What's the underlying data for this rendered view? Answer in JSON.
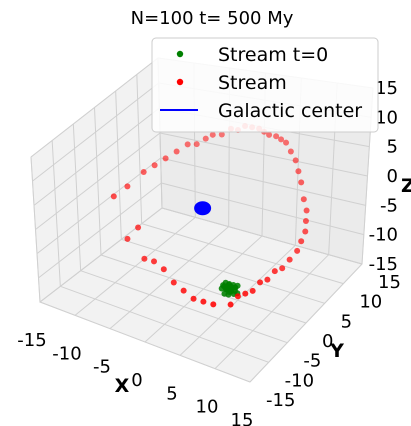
{
  "chart_data": {
    "type": "scatter",
    "projection": "3d",
    "title": "N=100 t= 500 My",
    "xlabel": "X",
    "ylabel": "Y",
    "zlabel": "Z",
    "xlim": [
      -15,
      15
    ],
    "ylim": [
      -15,
      15
    ],
    "zlim": [
      -15,
      15
    ],
    "x_ticks": [
      "-15",
      "-10",
      "-5",
      "0",
      "5",
      "10",
      "15"
    ],
    "y_ticks": [
      "-15",
      "-10",
      "-5",
      "0",
      "5",
      "10",
      "15"
    ],
    "z_ticks": [
      "-15",
      "-10",
      "-5",
      "0",
      "5",
      "10",
      "15"
    ],
    "grid": true,
    "legend_position": "top-right",
    "series": [
      {
        "name": "Stream t=0",
        "marker": "point",
        "color": "#008000",
        "points": [
          [
            8.0,
            -8.0,
            -6.0
          ],
          [
            8.4,
            -8.3,
            -6.2
          ],
          [
            8.8,
            -8.6,
            -5.8
          ],
          [
            9.1,
            -7.9,
            -6.4
          ],
          [
            7.7,
            -8.4,
            -5.6
          ],
          [
            8.2,
            -7.6,
            -6.6
          ],
          [
            8.9,
            -8.9,
            -6.0
          ],
          [
            9.3,
            -8.2,
            -5.5
          ],
          [
            7.5,
            -7.8,
            -6.3
          ],
          [
            8.6,
            -7.4,
            -5.9
          ],
          [
            8.1,
            -8.8,
            -6.7
          ],
          [
            9.0,
            -7.6,
            -6.1
          ],
          [
            7.9,
            -8.1,
            -5.3
          ],
          [
            8.5,
            -8.5,
            -6.9
          ],
          [
            9.4,
            -8.7,
            -6.3
          ],
          [
            7.6,
            -8.6,
            -6.1
          ],
          [
            8.3,
            -7.9,
            -5.5
          ],
          [
            8.7,
            -8.1,
            -6.5
          ],
          [
            9.2,
            -7.4,
            -5.8
          ],
          [
            8.0,
            -7.5,
            -6.0
          ],
          [
            8.8,
            -8.4,
            -5.4
          ],
          [
            7.8,
            -7.7,
            -6.8
          ],
          [
            8.4,
            -8.9,
            -5.7
          ],
          [
            9.5,
            -8.0,
            -6.6
          ],
          [
            8.6,
            -7.8,
            -6.2
          ],
          [
            8.2,
            -8.3,
            -5.9
          ]
        ]
      },
      {
        "name": "Stream",
        "marker": "point",
        "color": "#ff0000",
        "points": [
          [
            -14.0,
            2.0,
            -4.0
          ],
          [
            -13.2,
            4.0,
            -3.0
          ],
          [
            -12.0,
            6.0,
            -1.0
          ],
          [
            -11.0,
            7.0,
            0.0
          ],
          [
            -10.0,
            8.0,
            1.0
          ],
          [
            -9.0,
            9.0,
            2.0
          ],
          [
            -8.0,
            10.0,
            3.0
          ],
          [
            -7.0,
            10.5,
            3.0
          ],
          [
            -6.0,
            11.0,
            4.0
          ],
          [
            -5.0,
            11.0,
            5.0
          ],
          [
            -4.0,
            11.5,
            5.0
          ],
          [
            -3.0,
            12.0,
            6.0
          ],
          [
            -2.0,
            12.0,
            6.0
          ],
          [
            -1.0,
            12.0,
            7.0
          ],
          [
            0.0,
            12.0,
            7.0
          ],
          [
            1.0,
            12.0,
            7.0
          ],
          [
            2.0,
            11.5,
            7.0
          ],
          [
            3.0,
            11.0,
            7.0
          ],
          [
            4.0,
            11.0,
            7.0
          ],
          [
            5.0,
            10.5,
            7.0
          ],
          [
            6.0,
            10.0,
            7.0
          ],
          [
            7.0,
            9.5,
            6.0
          ],
          [
            8.0,
            9.0,
            5.0
          ],
          [
            9.0,
            8.0,
            4.0
          ],
          [
            10.0,
            7.0,
            3.0
          ],
          [
            11.0,
            6.0,
            1.0
          ],
          [
            12.0,
            5.0,
            0.0
          ],
          [
            12.5,
            4.0,
            -1.0
          ],
          [
            13.0,
            3.0,
            -2.0
          ],
          [
            13.0,
            2.0,
            -3.0
          ],
          [
            13.0,
            1.0,
            -4.0
          ],
          [
            12.5,
            0.0,
            -5.0
          ],
          [
            12.0,
            -1.0,
            -6.0
          ],
          [
            11.5,
            -2.0,
            -6.0
          ],
          [
            11.0,
            -3.0,
            -7.0
          ],
          [
            10.5,
            -4.0,
            -7.0
          ],
          [
            10.0,
            -5.0,
            -8.0
          ],
          [
            9.5,
            -6.0,
            -8.0
          ],
          [
            9.0,
            -7.0,
            -8.0
          ],
          [
            8.5,
            -8.0,
            -9.0
          ],
          [
            -8.0,
            -1.0,
            -12.0
          ],
          [
            -6.0,
            -2.0,
            -11.0
          ],
          [
            -4.0,
            -3.0,
            -11.0
          ],
          [
            -2.0,
            -4.0,
            -12.0
          ],
          [
            0.0,
            -5.0,
            -12.0
          ],
          [
            2.0,
            -6.0,
            -12.0
          ],
          [
            4.0,
            -7.0,
            -11.0
          ],
          [
            6.0,
            -8.0,
            -10.0
          ],
          [
            -11.0,
            0.0,
            -10.0
          ],
          [
            -10.0,
            1.0,
            -8.0
          ]
        ]
      },
      {
        "name": "Galactic center",
        "marker": "line",
        "color": "#0000ff",
        "points": [
          [
            0.0,
            0.0,
            0.0
          ]
        ]
      }
    ]
  }
}
